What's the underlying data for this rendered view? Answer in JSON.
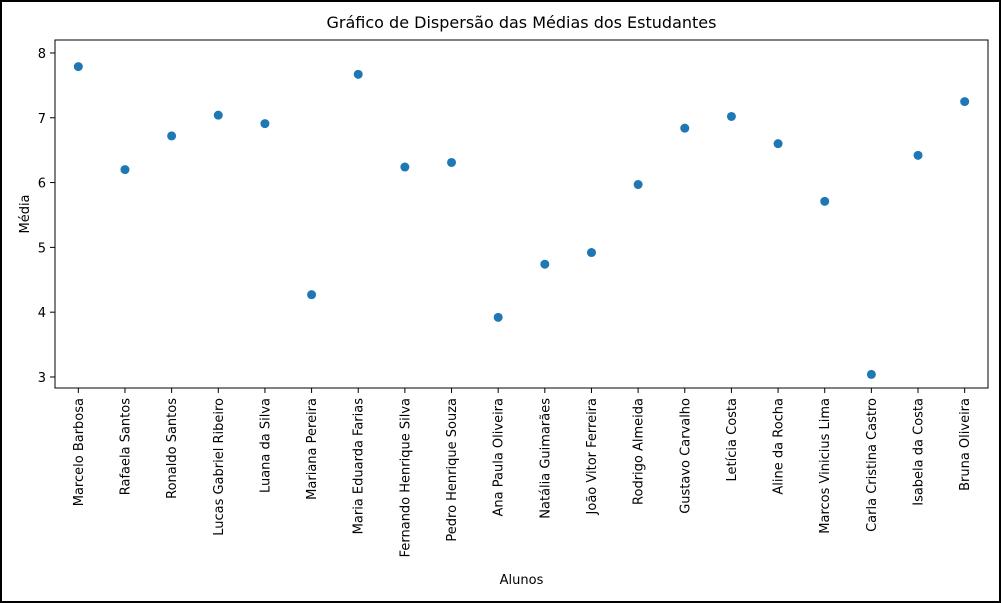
{
  "chart_data": {
    "type": "scatter",
    "title": "Gráfico de Dispersão das Médias dos Estudantes",
    "xlabel": "Alunos",
    "ylabel": "Média",
    "ylim": [
      2.83,
      8.2
    ],
    "yticks": [
      "3",
      "4",
      "5",
      "6",
      "7",
      "8"
    ],
    "grid": false,
    "marker_color": "#1f77b4",
    "categories": [
      "Marcelo Barbosa",
      "Rafaela Santos",
      "Ronaldo Santos",
      "Lucas Gabriel Ribeiro",
      "Luana da Silva",
      "Mariana Pereira",
      "Maria Eduarda Farias",
      "Fernando Henrique Silva",
      "Pedro Henrique Souza",
      "Ana Paula Oliveira",
      "Natália Guimarães",
      "João Vitor Ferreira",
      "Rodrigo Almeida",
      "Gustavo Carvalho",
      "Letícia Costa",
      "Aline da Rocha",
      "Marcos Vinicius Lima",
      "Carla Cristina Castro",
      "Isabela da Costa",
      "Bruna Oliveira"
    ],
    "values": [
      7.79,
      6.2,
      6.72,
      7.04,
      6.91,
      4.27,
      7.67,
      6.24,
      6.31,
      3.92,
      4.74,
      4.92,
      5.97,
      6.84,
      7.02,
      6.6,
      5.71,
      3.04,
      6.42,
      7.25
    ]
  }
}
